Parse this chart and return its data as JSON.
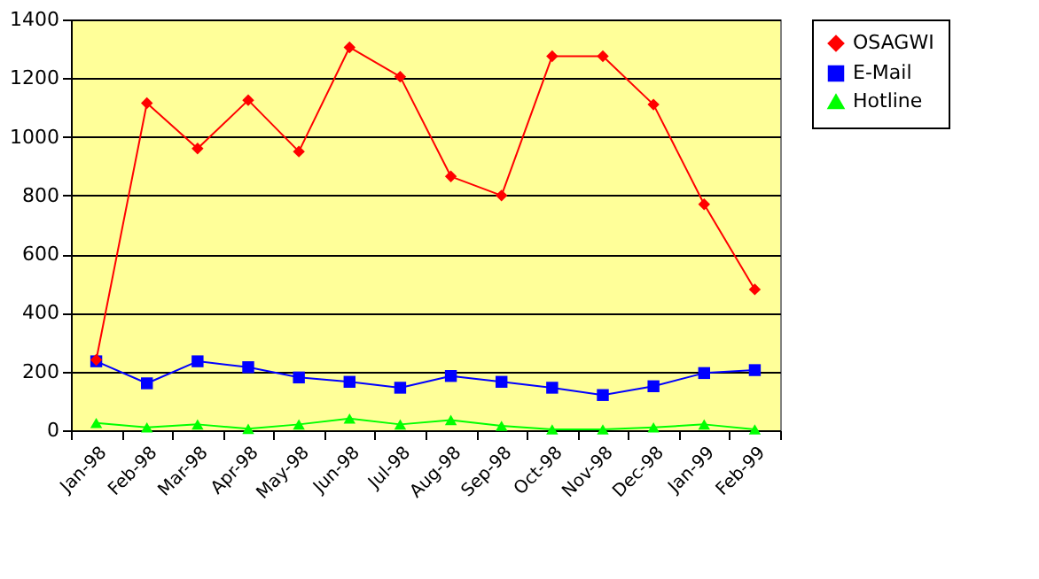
{
  "chart_data": {
    "type": "line",
    "categories": [
      "Jan-98",
      "Feb-98",
      "Mar-98",
      "Apr-98",
      "May-98",
      "Jun-98",
      "Jul-98",
      "Aug-98",
      "Sep-98",
      "Oct-98",
      "Nov-98",
      "Dec-98",
      "Jan-99",
      "Feb-99"
    ],
    "series": [
      {
        "name": "OSAGWI",
        "color": "#ff0000",
        "marker": "diamond",
        "values": [
          240,
          1115,
          960,
          1125,
          950,
          1305,
          1205,
          865,
          800,
          1275,
          1275,
          1110,
          770,
          480
        ]
      },
      {
        "name": "E-Mail",
        "color": "#0000ff",
        "marker": "square",
        "values": [
          235,
          160,
          235,
          215,
          180,
          165,
          145,
          185,
          165,
          145,
          120,
          150,
          195,
          205
        ]
      },
      {
        "name": "Hotline",
        "color": "#00ff00",
        "marker": "triangle",
        "values": [
          25,
          10,
          20,
          5,
          20,
          40,
          20,
          35,
          15,
          3,
          3,
          10,
          20,
          3
        ]
      }
    ],
    "ylim": [
      0,
      1400
    ],
    "yticks": [
      0,
      200,
      400,
      600,
      800,
      1000,
      1200,
      1400
    ],
    "grid": "y",
    "legend": "right",
    "line_style": "solid"
  }
}
